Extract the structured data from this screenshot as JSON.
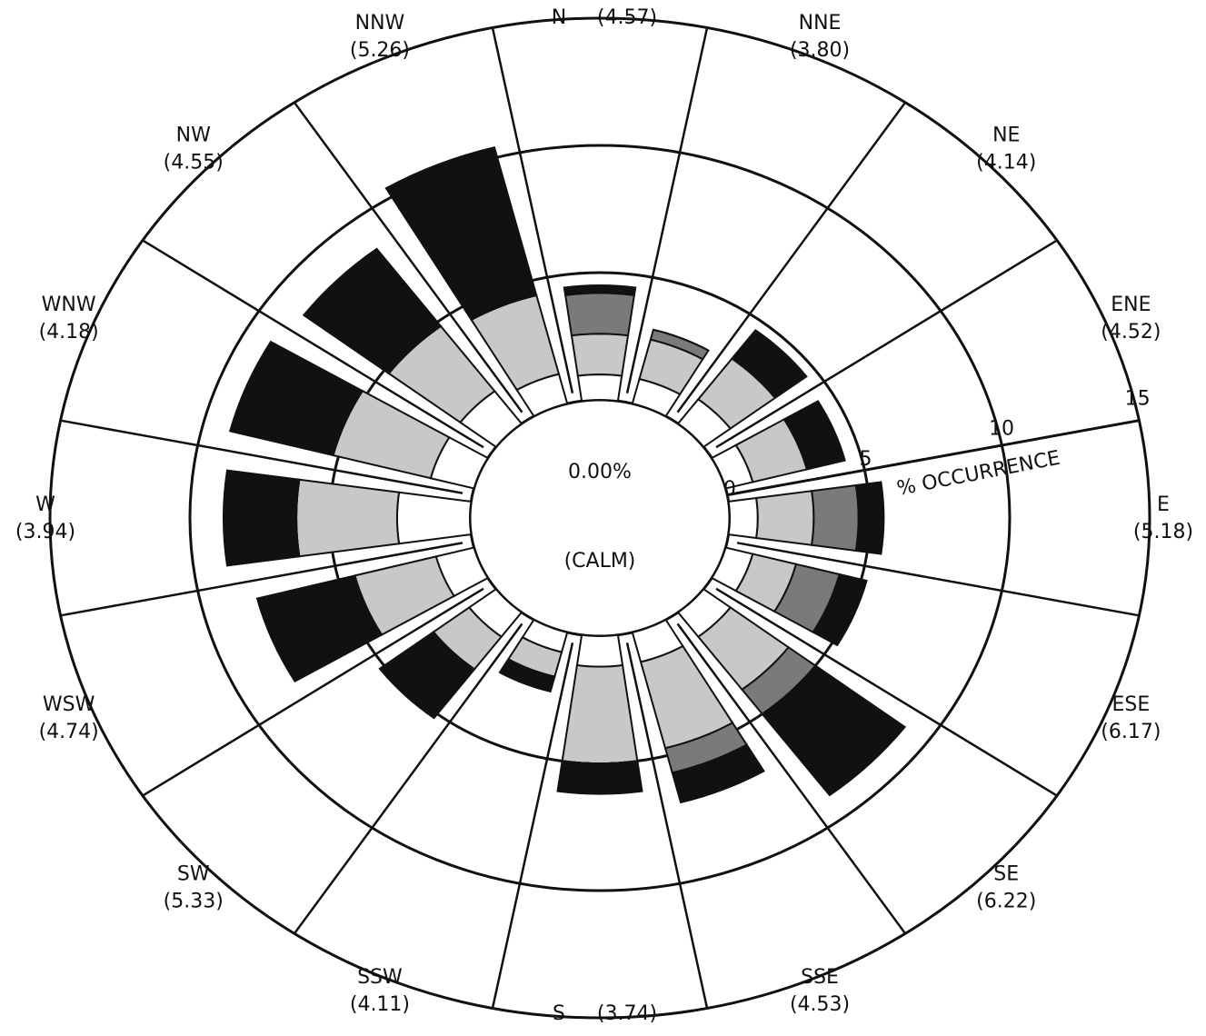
{
  "chart_data": {
    "type": "windrose",
    "categories": [
      "N",
      "NNE",
      "NE",
      "ENE",
      "E",
      "ESE",
      "SE",
      "SSE",
      "S",
      "SSW",
      "SW",
      "WSW",
      "W",
      "WNW",
      "NW",
      "NNW"
    ],
    "speed_labels": [
      "(4.57)",
      "(3.80)",
      "(4.14)",
      "(4.52)",
      "(5.18)",
      "(6.17)",
      "(6.22)",
      "(4.53)",
      "(3.74)",
      "(4.11)",
      "(5.33)",
      "(4.74)",
      "(3.94)",
      "(4.18)",
      "(4.55)",
      "(5.26)"
    ],
    "series": [
      {
        "color": "#ffffff",
        "values": [
          1.0,
          1.0,
          1.2,
          1.0,
          1.0,
          1.0,
          1.2,
          1.2,
          1.2,
          0.8,
          1.2,
          1.4,
          2.6,
          1.6,
          1.6,
          1.2
        ]
      },
      {
        "color": "#c8c8c8",
        "values": [
          1.6,
          1.6,
          2.0,
          2.0,
          2.0,
          1.6,
          2.6,
          3.5,
          3.8,
          1.0,
          1.6,
          3.0,
          3.6,
          3.6,
          3.2,
          3.2
        ]
      },
      {
        "color": "#7a7a7a",
        "values": [
          1.6,
          0.4,
          0,
          0,
          1.6,
          1.6,
          1.2,
          1.0,
          0,
          0,
          0,
          0,
          0,
          0,
          0,
          0
        ]
      },
      {
        "color": "#111111",
        "values": [
          0.3,
          0,
          1.4,
          1.4,
          0.9,
          1.0,
          4.0,
          1.2,
          1.2,
          0.6,
          2.4,
          3.6,
          2.6,
          3.8,
          3.8,
          6.0
        ]
      }
    ],
    "calm_value": "0.00%",
    "calm_label": "(CALM)",
    "axis_label": "% OCCURRENCE",
    "rlim": [
      0,
      15
    ],
    "rticks": [
      0,
      5,
      10,
      15
    ]
  }
}
